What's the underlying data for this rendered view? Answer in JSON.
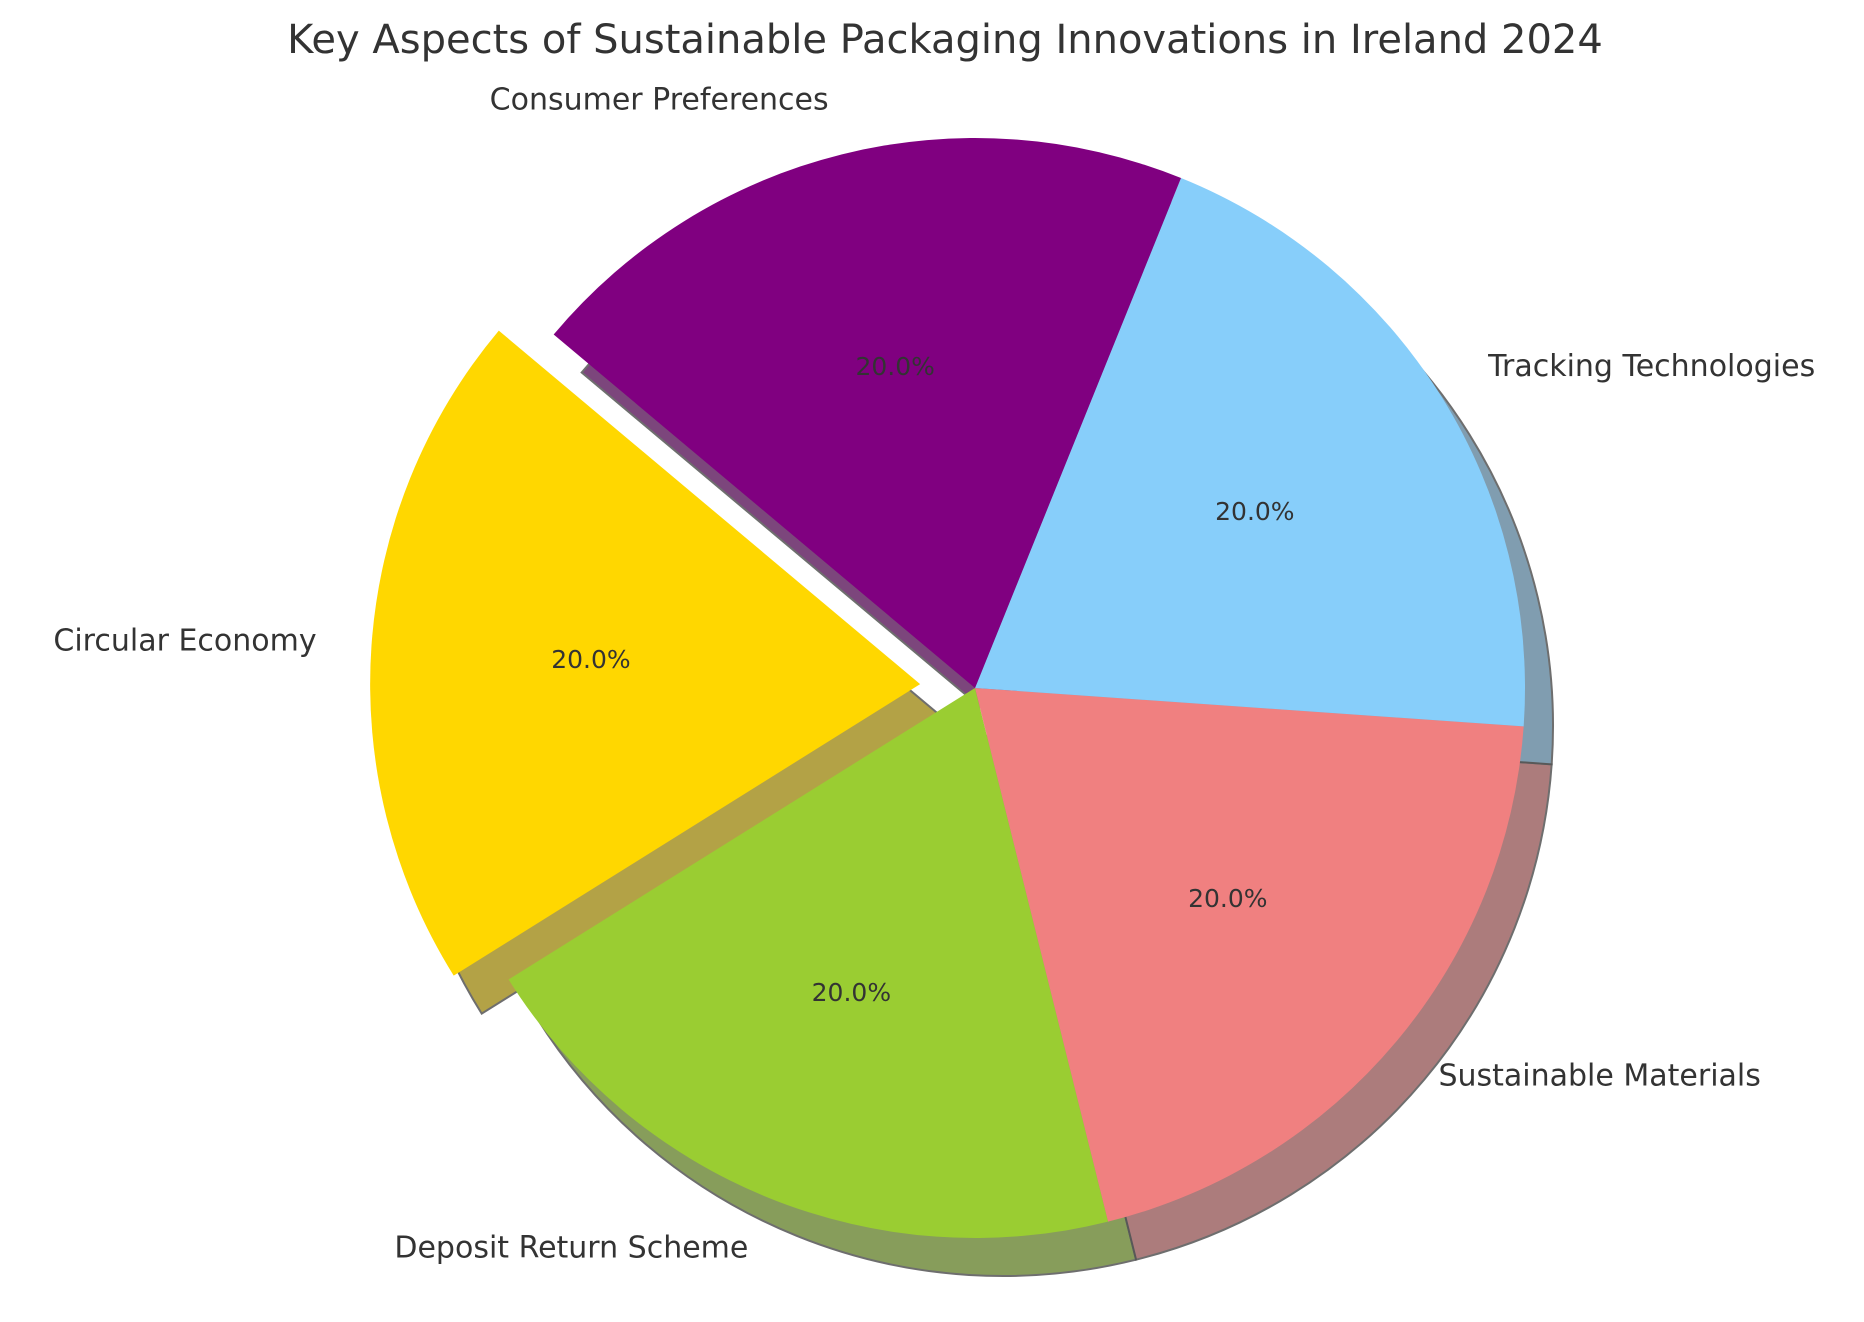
{
  "chart_data": {
    "type": "pie",
    "title": "Key Aspects of Sustainable Packaging Innovations in Ireland 2024",
    "start_angle_deg": 140,
    "shadow": true,
    "categories": [
      "Circular Economy",
      "Deposit Return Scheme",
      "Sustainable Materials",
      "Tracking Technologies",
      "Consumer Preferences"
    ],
    "values": [
      20,
      20,
      20,
      20,
      20
    ],
    "value_labels": [
      "20.0%",
      "20.0%",
      "20.0%",
      "20.0%",
      "20.0%"
    ],
    "colors": [
      "#FFD700",
      "#9ACD32",
      "#F08080",
      "#87CEFA",
      "#800080"
    ],
    "exploded": [
      true,
      false,
      false,
      false,
      false
    ]
  }
}
